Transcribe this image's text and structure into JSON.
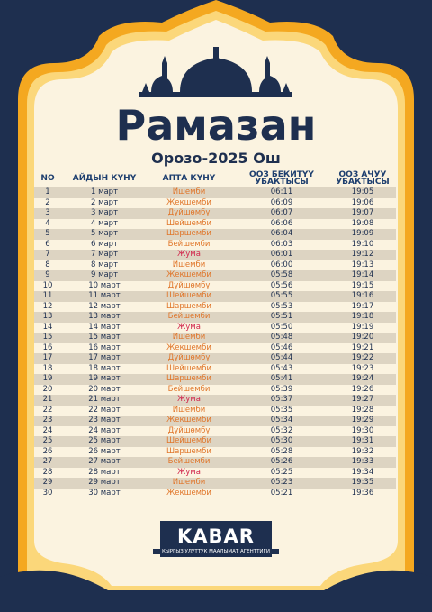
{
  "header": {
    "title": "Рамазан",
    "subtitle": "Орозо-2025 Ош"
  },
  "table": {
    "columns": [
      "NO",
      "АЙДЫН КҮНҮ",
      "АПТА КҮНҮ",
      "ООЗ БЕКИТҮҮ УБАКТЫСЫ",
      "ООЗ АЧУУ УБАКТЫСЫ"
    ],
    "rows": [
      [
        "1",
        "1 март",
        "Ишемби",
        "06:11",
        "19:05"
      ],
      [
        "2",
        "2 март",
        "Жекшемби",
        "06:09",
        "19:06"
      ],
      [
        "3",
        "3 март",
        "Дүйшөмбү",
        "06:07",
        "19:07"
      ],
      [
        "4",
        "4 март",
        "Шейшемби",
        "06:06",
        "19:08"
      ],
      [
        "5",
        "5 март",
        "Шаршемби",
        "06:04",
        "19:09"
      ],
      [
        "6",
        "6 март",
        "Бейшемби",
        "06:03",
        "19:10"
      ],
      [
        "7",
        "7 март",
        "Жума",
        "06:01",
        "19:12"
      ],
      [
        "8",
        "8 март",
        "Ишемби",
        "06:00",
        "19:13"
      ],
      [
        "9",
        "9 март",
        "Жекшемби",
        "05:58",
        "19:14"
      ],
      [
        "10",
        "10 март",
        "Дүйшөмбү",
        "05:56",
        "19:15"
      ],
      [
        "11",
        "11 март",
        "Шейшемби",
        "05:55",
        "19:16"
      ],
      [
        "12",
        "12 март",
        "Шаршемби",
        "05:53",
        "19:17"
      ],
      [
        "13",
        "13 март",
        "Бейшемби",
        "05:51",
        "19:18"
      ],
      [
        "14",
        "14 март",
        "Жума",
        "05:50",
        "19:19"
      ],
      [
        "15",
        "15 март",
        "Ишемби",
        "05:48",
        "19:20"
      ],
      [
        "16",
        "16 март",
        "Жекшемби",
        "05:46",
        "19:21"
      ],
      [
        "17",
        "17 март",
        "Дүйшөмбү",
        "05:44",
        "19:22"
      ],
      [
        "18",
        "18 март",
        "Шейшемби",
        "05:43",
        "19:23"
      ],
      [
        "19",
        "19 март",
        "Шаршемби",
        "05:41",
        "19:24"
      ],
      [
        "20",
        "20 март",
        "Бейшемби",
        "05:39",
        "19:26"
      ],
      [
        "21",
        "21 март",
        "Жума",
        "05:37",
        "19:27"
      ],
      [
        "22",
        "22 март",
        "Ишемби",
        "05:35",
        "19:28"
      ],
      [
        "23",
        "23 март",
        "Жекшемби",
        "05:34",
        "19:29"
      ],
      [
        "24",
        "24 март",
        "Дүйшөмбү",
        "05:32",
        "19:30"
      ],
      [
        "25",
        "25 март",
        "Шейшемби",
        "05:30",
        "19:31"
      ],
      [
        "26",
        "26 март",
        "Шаршемби",
        "05:28",
        "19:32"
      ],
      [
        "27",
        "27 март",
        "Бейшемби",
        "05:26",
        "19:33"
      ],
      [
        "28",
        "28 март",
        "Жума",
        "05:25",
        "19:34"
      ],
      [
        "29",
        "29 март",
        "Ишемби",
        "05:23",
        "19:35"
      ],
      [
        "30",
        "30 март",
        "Жекшемби",
        "05:21",
        "19:36"
      ]
    ]
  },
  "footer": {
    "logo": "KABAR",
    "tagline": "КЫРГЫЗ УЛУТТУК МААЛЫМАТ АГЕНТТИГИ"
  }
}
